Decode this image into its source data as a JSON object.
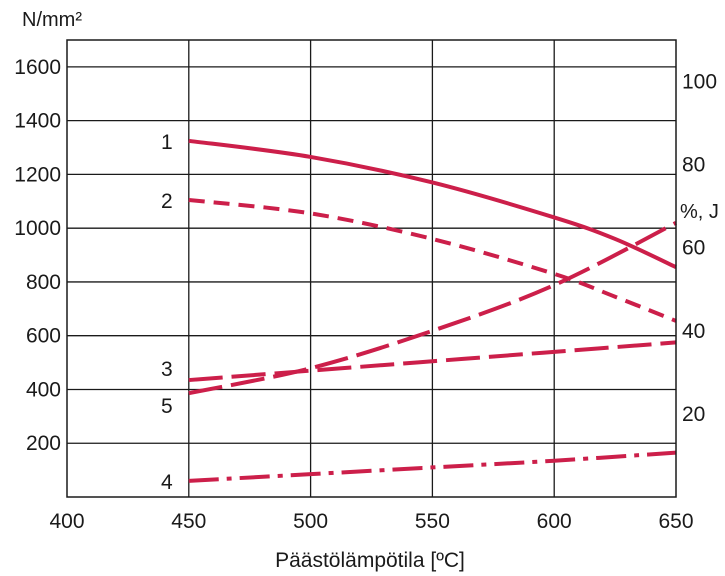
{
  "chart_data": {
    "type": "line",
    "xlabel": "Päästölämpötila [ºC]",
    "ylabel_left": "N/mm²",
    "ylabel_right": "%, J",
    "x_ticks": [
      "400",
      "450",
      "500",
      "550",
      "600",
      "650"
    ],
    "y_left_ticks": [
      "200",
      "400",
      "600",
      "800",
      "1000",
      "1200",
      "1400",
      "1600"
    ],
    "y_right_ticks": [
      "20",
      "40",
      "60",
      "80",
      "100"
    ],
    "xlim": [
      400,
      650
    ],
    "ylim_left": [
      0,
      1700
    ],
    "ylim_right": [
      0,
      110
    ],
    "grid": true,
    "series_color": "#cc1f4a",
    "series": [
      {
        "label": "1",
        "axis": "left",
        "dash": "solid",
        "x": [
          450,
          500,
          550,
          600,
          625,
          650
        ],
        "y": [
          1325,
          1265,
          1170,
          1040,
          960,
          855
        ]
      },
      {
        "label": "2",
        "axis": "left",
        "dash": "dashed",
        "x": [
          450,
          500,
          550,
          600,
          625,
          650
        ],
        "y": [
          1105,
          1055,
          960,
          830,
          745,
          655
        ]
      },
      {
        "label": "3",
        "axis": "left",
        "dash": "longdash",
        "x": [
          450,
          500,
          550,
          600,
          650
        ],
        "y": [
          435,
          470,
          505,
          540,
          575
        ]
      },
      {
        "label": "4",
        "axis": "left",
        "dash": "dashdot",
        "x": [
          450,
          500,
          550,
          600,
          650
        ],
        "y": [
          60,
          85,
          110,
          135,
          165
        ]
      },
      {
        "label": "5",
        "axis": "right",
        "dash": "longdash",
        "x": [
          450,
          500,
          550,
          600,
          650
        ],
        "y": [
          25,
          31,
          40,
          51,
          66
        ]
      }
    ]
  }
}
